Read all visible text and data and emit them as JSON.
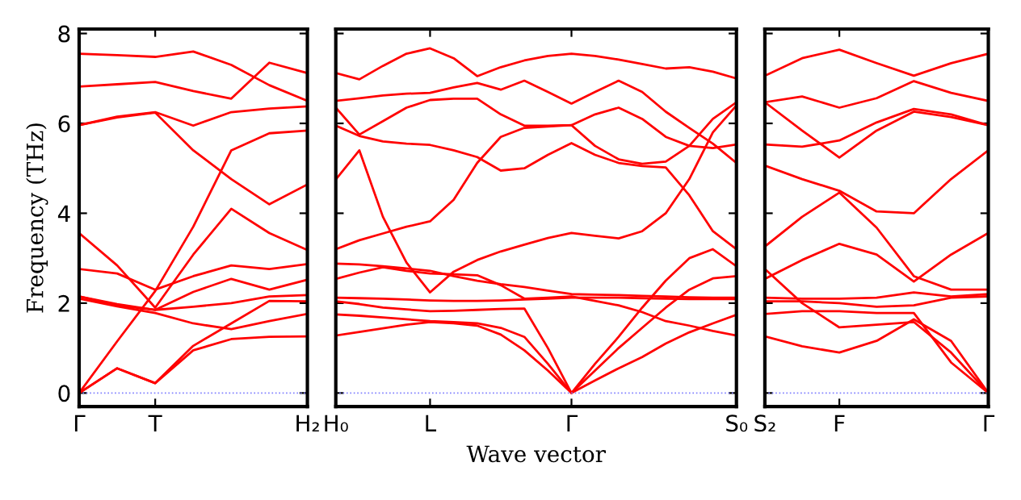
{
  "chart_data": [
    {
      "type": "line",
      "ylabel": "Frequency (THz)",
      "categories": [
        "Γ",
        null,
        "T",
        null,
        null,
        null,
        "H₂"
      ],
      "ylim": [
        -0.3,
        8.1
      ],
      "yticks": [
        0,
        2,
        4,
        6,
        8
      ],
      "grid": false,
      "marker": "none",
      "line_style": "solid",
      "ref_lines": [
        {
          "axis": "y",
          "value": 0,
          "color": "#8080ff",
          "line_style": "dotted"
        }
      ],
      "series": [
        {
          "color": "#ff0000",
          "values": [
            7.55,
            7.52,
            7.48,
            7.6,
            7.3,
            6.85,
            6.5
          ]
        },
        {
          "color": "#ff0000",
          "values": [
            6.82,
            6.87,
            6.92,
            6.72,
            6.55,
            7.35,
            7.12
          ]
        },
        {
          "color": "#ff0000",
          "values": [
            5.96,
            6.15,
            6.25,
            5.95,
            6.25,
            6.33,
            6.38
          ]
        },
        {
          "color": "#ff0000",
          "values": [
            5.96,
            6.13,
            6.24,
            5.4,
            4.76,
            4.2,
            4.64
          ]
        },
        {
          "color": "#ff0000",
          "values": [
            0,
            1.15,
            2.27,
            3.7,
            5.4,
            5.78,
            5.84
          ]
        },
        {
          "color": "#ff0000",
          "values": [
            3.56,
            2.84,
            1.9,
            3.08,
            4.1,
            3.56,
            3.18
          ]
        },
        {
          "color": "#ff0000",
          "values": [
            2.76,
            2.66,
            2.3,
            2.6,
            2.84,
            2.76,
            2.87
          ]
        },
        {
          "color": "#ff0000",
          "values": [
            2.15,
            1.95,
            1.85,
            2.25,
            2.54,
            2.3,
            2.52
          ]
        },
        {
          "color": "#ff0000",
          "values": [
            2.15,
            1.98,
            1.85,
            1.92,
            2.0,
            2.15,
            2.18
          ]
        },
        {
          "color": "#ff0000",
          "values": [
            2.1,
            1.93,
            1.78,
            1.55,
            1.42,
            1.6,
            1.76
          ]
        },
        {
          "color": "#ff0000",
          "values": [
            0,
            0.55,
            0.22,
            1.05,
            1.55,
            2.05,
            2.04
          ]
        },
        {
          "color": "#ff0000",
          "values": [
            0,
            0.55,
            0.22,
            0.95,
            1.2,
            1.25,
            1.26
          ]
        }
      ]
    },
    {
      "type": "line",
      "xlabel": "Wave vector",
      "categories": [
        "H₀",
        null,
        null,
        null,
        "L",
        null,
        null,
        null,
        null,
        null,
        "Γ",
        null,
        null,
        null,
        null,
        null,
        null,
        "S₀"
      ],
      "ylim": [
        -0.3,
        8.1
      ],
      "yticks": [
        0,
        2,
        4,
        6,
        8
      ],
      "tick_labels": "x",
      "grid": false,
      "marker": "none",
      "line_style": "solid",
      "ref_lines": [
        {
          "axis": "y",
          "value": 0,
          "color": "#8080ff",
          "line_style": "dotted"
        }
      ],
      "series": [
        {
          "color": "#ff0000",
          "values": [
            7.12,
            6.98,
            7.28,
            7.55,
            7.67,
            7.45,
            7.05,
            7.25,
            7.4,
            7.5,
            7.55,
            7.5,
            7.42,
            7.32,
            7.22,
            7.25,
            7.15,
            7.0
          ]
        },
        {
          "color": "#ff0000",
          "values": [
            6.5,
            6.56,
            6.62,
            6.66,
            6.68,
            6.8,
            6.9,
            6.75,
            6.95,
            6.7,
            6.44,
            6.7,
            6.95,
            6.7,
            6.26,
            5.9,
            5.55,
            5.12
          ]
        },
        {
          "color": "#ff0000",
          "values": [
            6.35,
            5.75,
            6.05,
            6.35,
            6.52,
            6.55,
            6.55,
            6.2,
            5.95,
            5.95,
            5.96,
            6.2,
            6.35,
            6.1,
            5.7,
            5.5,
            5.45,
            5.53
          ]
        },
        {
          "color": "#ff0000",
          "values": [
            5.95,
            5.72,
            5.6,
            5.55,
            5.52,
            5.4,
            5.25,
            4.95,
            5.0,
            5.3,
            5.56,
            5.3,
            5.12,
            5.05,
            5.02,
            4.4,
            3.6,
            3.2
          ]
        },
        {
          "color": "#ff0000",
          "values": [
            4.75,
            5.4,
            3.92,
            2.9,
            2.24,
            2.7,
            2.96,
            3.15,
            3.3,
            3.45,
            3.56,
            3.5,
            3.44,
            3.6,
            4.0,
            4.76,
            5.8,
            6.4
          ]
        },
        {
          "color": "#ff0000",
          "values": [
            3.2,
            3.4,
            3.55,
            3.7,
            3.82,
            4.3,
            5.12,
            5.7,
            5.9,
            5.93,
            5.96,
            5.5,
            5.2,
            5.1,
            5.15,
            5.5,
            6.1,
            6.47
          ]
        },
        {
          "color": "#ff0000",
          "values": [
            2.88,
            2.86,
            2.82,
            2.77,
            2.72,
            2.6,
            2.5,
            2.42,
            2.36,
            2.28,
            2.2,
            2.19,
            2.18,
            2.16,
            2.15,
            2.13,
            2.12,
            2.12
          ]
        },
        {
          "color": "#ff0000",
          "values": [
            2.54,
            2.68,
            2.8,
            2.72,
            2.66,
            2.64,
            2.62,
            2.4,
            2.1,
            2.12,
            2.15,
            2.05,
            1.95,
            1.8,
            1.6,
            1.5,
            1.38,
            1.28
          ]
        },
        {
          "color": "#ff0000",
          "values": [
            2.12,
            2.11,
            2.1,
            2.08,
            2.06,
            2.05,
            2.05,
            2.06,
            2.08,
            2.1,
            2.12,
            2.12,
            2.12,
            2.11,
            2.1,
            2.09,
            2.09,
            2.09
          ]
        },
        {
          "color": "#ff0000",
          "values": [
            2.04,
            1.98,
            1.9,
            1.86,
            1.82,
            1.83,
            1.85,
            1.87,
            1.88,
            1.0,
            0,
            0.65,
            1.25,
            1.9,
            2.5,
            3.0,
            3.2,
            2.82
          ]
        },
        {
          "color": "#ff0000",
          "values": [
            1.75,
            1.72,
            1.68,
            1.64,
            1.6,
            1.58,
            1.55,
            1.45,
            1.25,
            0.65,
            0,
            0.5,
            1.0,
            1.45,
            1.9,
            2.3,
            2.55,
            2.6
          ]
        },
        {
          "color": "#ff0000",
          "values": [
            1.28,
            1.36,
            1.44,
            1.52,
            1.58,
            1.55,
            1.5,
            1.3,
            0.95,
            0.5,
            0,
            0.28,
            0.55,
            0.8,
            1.1,
            1.35,
            1.55,
            1.74
          ]
        }
      ]
    },
    {
      "type": "line",
      "categories": [
        "S₂",
        null,
        "F",
        null,
        null,
        null,
        "Γ"
      ],
      "ylim": [
        -0.3,
        8.1
      ],
      "yticks": [
        0,
        2,
        4,
        6,
        8
      ],
      "tick_labels": "x",
      "grid": false,
      "marker": "none",
      "line_style": "solid",
      "ref_lines": [
        {
          "axis": "y",
          "value": 0,
          "color": "#8080ff",
          "line_style": "dotted"
        }
      ],
      "series": [
        {
          "color": "#ff0000",
          "values": [
            7.06,
            7.45,
            7.64,
            7.34,
            7.06,
            7.34,
            7.55
          ]
        },
        {
          "color": "#ff0000",
          "values": [
            6.47,
            6.6,
            6.35,
            6.56,
            6.94,
            6.68,
            6.5
          ]
        },
        {
          "color": "#ff0000",
          "values": [
            6.47,
            5.84,
            5.24,
            5.84,
            6.26,
            6.14,
            5.96
          ]
        },
        {
          "color": "#ff0000",
          "values": [
            5.53,
            5.48,
            5.62,
            6.02,
            6.32,
            6.2,
            5.96
          ]
        },
        {
          "color": "#ff0000",
          "values": [
            5.06,
            4.76,
            4.5,
            4.04,
            4.0,
            4.76,
            5.4
          ]
        },
        {
          "color": "#ff0000",
          "values": [
            3.26,
            3.92,
            4.46,
            3.68,
            2.6,
            2.3,
            2.3
          ]
        },
        {
          "color": "#ff0000",
          "values": [
            2.54,
            2.96,
            3.32,
            3.08,
            2.48,
            3.08,
            3.56
          ]
        },
        {
          "color": "#ff0000",
          "values": [
            2.76,
            2.0,
            1.46,
            1.52,
            1.58,
            0.9,
            0
          ]
        },
        {
          "color": "#ff0000",
          "values": [
            2.12,
            2.1,
            2.1,
            2.12,
            2.24,
            2.15,
            2.2
          ]
        },
        {
          "color": "#ff0000",
          "values": [
            2.04,
            2.04,
            2.0,
            1.92,
            1.95,
            2.12,
            2.15
          ]
        },
        {
          "color": "#ff0000",
          "values": [
            1.76,
            1.82,
            1.82,
            1.78,
            1.78,
            0.68,
            0
          ]
        },
        {
          "color": "#ff0000",
          "values": [
            1.26,
            1.04,
            0.9,
            1.16,
            1.64,
            1.16,
            0
          ]
        }
      ]
    }
  ]
}
